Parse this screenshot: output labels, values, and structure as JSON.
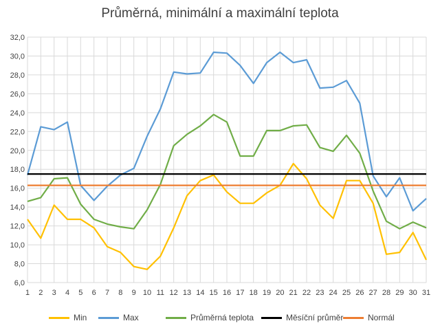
{
  "chart_data": {
    "type": "line",
    "title": "Průměrná, minimální a maximální teplota",
    "xlabel": "",
    "ylabel": "",
    "categories": [
      "1",
      "2",
      "3",
      "4",
      "5",
      "6",
      "7",
      "8",
      "9",
      "10",
      "11",
      "12",
      "13",
      "14",
      "15",
      "16",
      "17",
      "18",
      "19",
      "20",
      "21",
      "22",
      "23",
      "24",
      "25",
      "26",
      "27",
      "28",
      "29",
      "30",
      "31"
    ],
    "ylim": [
      6,
      32
    ],
    "y_ticks": [
      "6,0",
      "8,0",
      "10,0",
      "12,0",
      "14,0",
      "16,0",
      "18,0",
      "20,0",
      "22,0",
      "24,0",
      "26,0",
      "28,0",
      "30,0",
      "32,0"
    ],
    "grid": true,
    "legend_position": "bottom",
    "series": [
      {
        "name": "Min",
        "color": "#FFC000",
        "values": [
          12.7,
          10.7,
          14.2,
          12.7,
          12.7,
          11.8,
          9.8,
          9.2,
          7.7,
          7.4,
          8.8,
          11.8,
          15.2,
          16.8,
          17.4,
          15.6,
          14.4,
          14.4,
          15.5,
          16.3,
          18.6,
          17.0,
          14.2,
          12.8,
          16.8,
          16.8,
          14.4,
          9.0,
          9.2,
          11.3,
          8.4
        ]
      },
      {
        "name": "Max",
        "color": "#5B9BD5",
        "values": [
          17.4,
          22.5,
          22.2,
          23.0,
          16.3,
          14.7,
          16.2,
          17.4,
          18.1,
          21.5,
          24.4,
          28.3,
          28.1,
          28.2,
          30.4,
          30.3,
          29.0,
          27.1,
          29.3,
          30.4,
          29.3,
          29.6,
          26.6,
          26.7,
          27.4,
          25.0,
          17.3,
          15.1,
          17.1,
          13.6,
          14.9
        ]
      },
      {
        "name": "Průměrná teplota",
        "color": "#70AD47",
        "values": [
          14.6,
          15.0,
          17.0,
          17.1,
          14.3,
          12.7,
          12.2,
          11.9,
          11.7,
          13.7,
          16.4,
          20.5,
          21.7,
          22.6,
          23.8,
          23.0,
          19.4,
          19.4,
          22.1,
          22.1,
          22.6,
          22.7,
          20.3,
          19.9,
          21.6,
          19.7,
          15.7,
          12.5,
          11.7,
          12.4,
          11.8
        ]
      },
      {
        "name": "Měsíční průměr",
        "color": "#000000",
        "values": [
          17.5,
          17.5,
          17.5,
          17.5,
          17.5,
          17.5,
          17.5,
          17.5,
          17.5,
          17.5,
          17.5,
          17.5,
          17.5,
          17.5,
          17.5,
          17.5,
          17.5,
          17.5,
          17.5,
          17.5,
          17.5,
          17.5,
          17.5,
          17.5,
          17.5,
          17.5,
          17.5,
          17.5,
          17.5,
          17.5,
          17.5
        ]
      },
      {
        "name": "Normál",
        "color": "#ED7D31",
        "values": [
          16.3,
          16.3,
          16.3,
          16.3,
          16.3,
          16.3,
          16.3,
          16.3,
          16.3,
          16.3,
          16.3,
          16.3,
          16.3,
          16.3,
          16.3,
          16.3,
          16.3,
          16.3,
          16.3,
          16.3,
          16.3,
          16.3,
          16.3,
          16.3,
          16.3,
          16.3,
          16.3,
          16.3,
          16.3,
          16.3,
          16.3
        ]
      }
    ]
  }
}
